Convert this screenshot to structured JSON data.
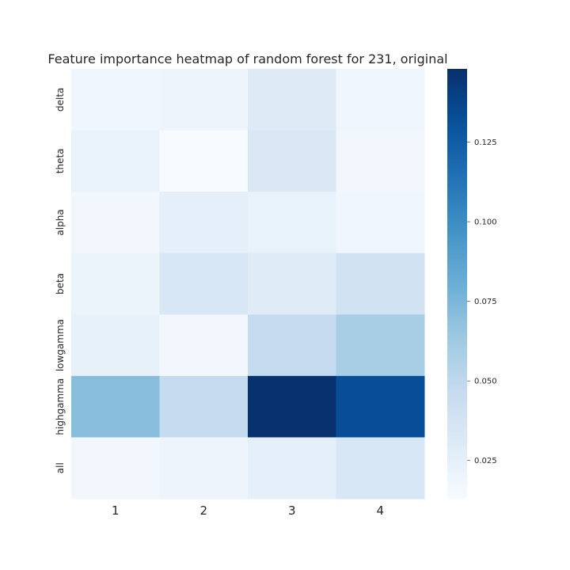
{
  "chart_data": {
    "type": "heatmap",
    "title": "Feature importance heatmap of random forest for 231, original",
    "x_categories": [
      "1",
      "2",
      "3",
      "4"
    ],
    "y_categories": [
      "delta",
      "theta",
      "alpha",
      "beta",
      "lowgamma",
      "highgamma",
      "all"
    ],
    "values": [
      [
        0.018,
        0.02,
        0.03,
        0.018
      ],
      [
        0.022,
        0.013,
        0.033,
        0.017
      ],
      [
        0.017,
        0.026,
        0.023,
        0.018
      ],
      [
        0.021,
        0.034,
        0.029,
        0.039
      ],
      [
        0.024,
        0.017,
        0.047,
        0.06
      ],
      [
        0.071,
        0.047,
        0.147,
        0.133
      ],
      [
        0.017,
        0.02,
        0.026,
        0.034
      ]
    ],
    "colormap": "Blues",
    "vmin": 0.013,
    "vmax": 0.148,
    "colorbar": {
      "ticks": [
        0.025,
        0.05,
        0.075,
        0.1,
        0.125
      ],
      "tick_labels": [
        "0.025",
        "0.050",
        "0.075",
        "0.100",
        "0.125"
      ]
    },
    "xlabel": "",
    "ylabel": "",
    "grid": false
  }
}
